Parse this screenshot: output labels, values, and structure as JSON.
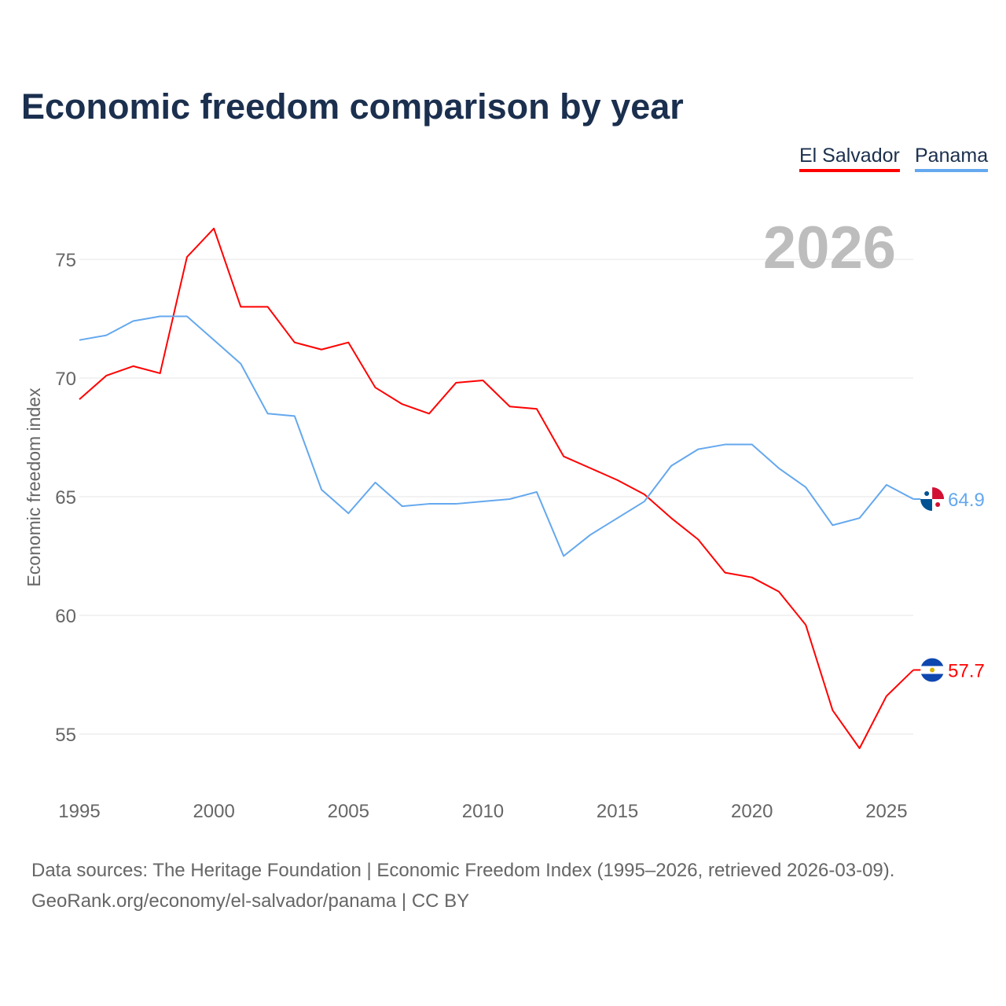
{
  "chart_data": {
    "type": "line",
    "title": "Economic freedom comparison by year",
    "ylabel": "Economic freedom index",
    "xlabel": "",
    "ylim": [
      52.5,
      77.5
    ],
    "xlim": [
      1995,
      2026
    ],
    "yticks": [
      55,
      60,
      65,
      70,
      75
    ],
    "xticks": [
      1995,
      2000,
      2005,
      2010,
      2015,
      2020,
      2025
    ],
    "grid": true,
    "legend_position": "top-right",
    "year_label": "2026",
    "x": [
      1995,
      1996,
      1997,
      1998,
      1999,
      2000,
      2001,
      2002,
      2003,
      2004,
      2005,
      2006,
      2007,
      2008,
      2009,
      2010,
      2011,
      2012,
      2013,
      2014,
      2015,
      2016,
      2017,
      2018,
      2019,
      2020,
      2021,
      2022,
      2023,
      2024,
      2025,
      2026
    ],
    "series": [
      {
        "name": "El Salvador",
        "color": "#ff0000",
        "end_label": "57.7",
        "values": [
          69.1,
          70.1,
          70.5,
          70.2,
          75.1,
          76.3,
          73.0,
          73.0,
          71.5,
          71.2,
          71.5,
          69.6,
          68.9,
          68.5,
          69.8,
          69.9,
          68.8,
          68.7,
          66.7,
          66.2,
          65.7,
          65.1,
          64.1,
          63.2,
          61.8,
          61.6,
          61.0,
          59.6,
          56.0,
          54.4,
          56.6,
          57.7
        ]
      },
      {
        "name": "Panama",
        "color": "#64a8ee",
        "end_label": "64.9",
        "values": [
          71.6,
          71.8,
          72.4,
          72.6,
          72.6,
          71.6,
          70.6,
          68.5,
          68.4,
          65.3,
          64.3,
          65.6,
          64.6,
          64.7,
          64.7,
          64.8,
          64.9,
          65.2,
          62.5,
          63.4,
          64.1,
          64.8,
          66.3,
          67.0,
          67.2,
          67.2,
          66.2,
          65.4,
          63.8,
          64.1,
          65.5,
          64.9
        ]
      }
    ]
  },
  "footer": {
    "line1": "Data sources: The Heritage Foundation | Economic Freedom Index (1995–2026, retrieved 2026-03-09).",
    "line2": "GeoRank.org/economy/el-salvador/panama | CC BY"
  }
}
